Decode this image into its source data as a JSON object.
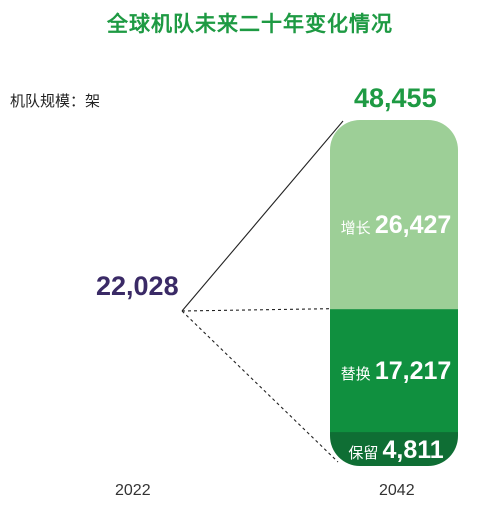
{
  "chart_data": {
    "type": "bar",
    "title": "全球机队未来二十年变化情况",
    "unit_label": "机队规模：架",
    "categories": [
      "2022",
      "2042"
    ],
    "start_value": "22,028",
    "total_value": "48,455",
    "stacked_series": [
      {
        "name": "保留",
        "value": 4811,
        "display": "4,811",
        "color": "#0f6e34"
      },
      {
        "name": "替换",
        "value": 17217,
        "display": "17,217",
        "color": "#10903f"
      },
      {
        "name": "增长",
        "value": 26427,
        "display": "26,427",
        "color": "#9dcf97"
      }
    ]
  },
  "colors": {
    "title": "#1e9a43",
    "start_value": "#3a2a66"
  }
}
